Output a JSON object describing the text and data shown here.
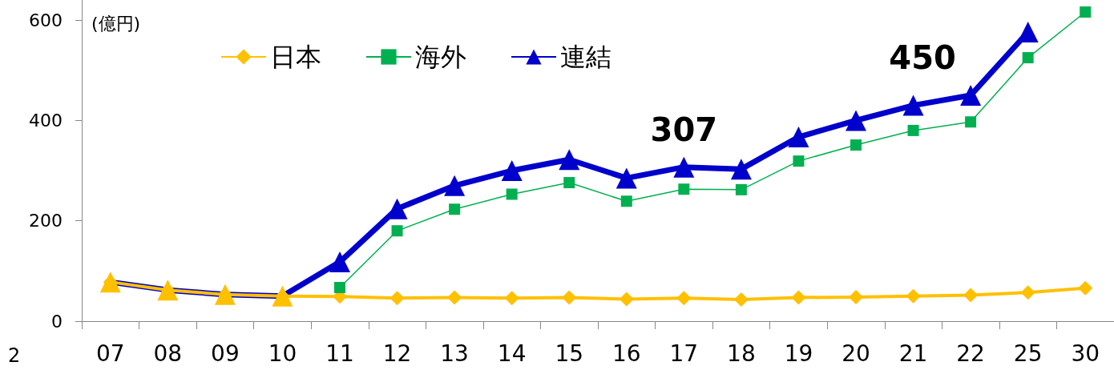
{
  "chart_data": {
    "type": "line",
    "ylabel": "(億円)",
    "categories": [
      "07",
      "08",
      "09",
      "10",
      "11",
      "12",
      "13",
      "14",
      "15",
      "16",
      "17",
      "18",
      "19",
      "20",
      "21",
      "22",
      "25",
      "30"
    ],
    "series": [
      {
        "name": "日本",
        "color": "#ffc000",
        "marker": "diamond",
        "values": [
          78,
          62,
          53,
          50,
          49,
          46,
          47,
          46,
          47,
          44,
          46,
          43,
          47,
          48,
          50,
          52,
          57,
          66
        ]
      },
      {
        "name": "海外",
        "color": "#00b050",
        "marker": "square",
        "values": [
          null,
          null,
          null,
          null,
          67,
          180,
          223,
          253,
          276,
          239,
          263,
          262,
          319,
          351,
          380,
          397,
          525,
          616
        ]
      },
      {
        "name": "連結",
        "color": "#0000cc",
        "marker": "triangle",
        "colors": [
          "#ffc000",
          "#ffc000",
          "#ffc000",
          "#ffc000",
          "#0000cc",
          "#0000cc",
          "#0000cc",
          "#0000cc",
          "#0000cc",
          "#0000cc",
          "#0000cc",
          "#0000cc",
          "#0000cc",
          "#0000cc",
          "#0000cc",
          "#0000cc",
          "#0000cc",
          "#0000cc"
        ],
        "values": [
          78,
          62,
          53,
          50,
          118,
          224,
          270,
          300,
          322,
          285,
          307,
          303,
          367,
          400,
          430,
          450,
          576,
          null
        ],
        "value_labels": [
          null,
          null,
          null,
          null,
          null,
          null,
          null,
          null,
          null,
          null,
          "307",
          null,
          null,
          null,
          null,
          "450",
          null,
          null
        ]
      }
    ],
    "ylim": [
      0,
      640
    ],
    "yticks": [
      0,
      200,
      400,
      600
    ],
    "grid": false,
    "legend": "top",
    "annotations": [
      "2"
    ]
  }
}
